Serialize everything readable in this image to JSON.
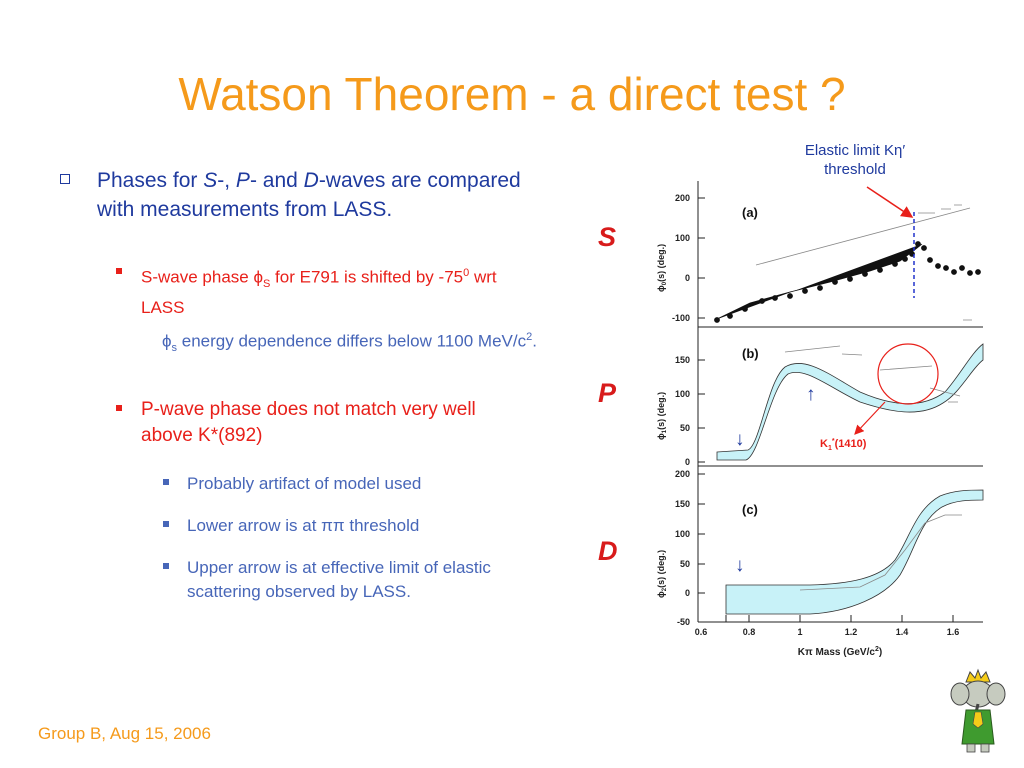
{
  "slide": {
    "title": "Watson Theorem - a direct test ?",
    "footer": "Group B, Aug 15, 2006"
  },
  "bullets": {
    "main": {
      "t1": "Phases for ",
      "s": "S",
      "t2": "-, ",
      "p": "P",
      "t3": "- and ",
      "d": "D",
      "t4": "-waves are compared with measurements from LASS."
    },
    "sub1": {
      "t1": "S-wave phase ",
      "phi": "ϕ",
      "sub": "S",
      "t2": " for E791 is shifted by -75",
      "sup": "0",
      "t3": " wrt LASS"
    },
    "note": {
      "phi": "ϕ",
      "sub": "s",
      "t1": " energy dependence differs below 1100 MeV/c",
      "sup": "2",
      "t2": "."
    },
    "sub2": "P-wave phase does not match very well above K*(892)",
    "items": [
      {
        "text": "Probably artifact of model used"
      },
      {
        "pre": "Lower arrow is at ",
        "pipi": "ππ",
        "post": " threshold"
      },
      {
        "text": "Upper arrow is at effective limit of elastic scattering observed by LASS."
      }
    ]
  },
  "figure": {
    "annotation_line1": "Elastic limit Kη′",
    "annotation_line2": "threshold",
    "wave_labels": [
      "S",
      "P",
      "D"
    ],
    "panels": [
      {
        "label": "(a)",
        "ylabel_main": "ϕ",
        "ylabel_sub": "0",
        "ylabel_rest": "(s)  (deg.)",
        "yticks": [
          "200",
          "100",
          "0",
          "-100"
        ]
      },
      {
        "label": "(b)",
        "ylabel_main": "ϕ",
        "ylabel_sub": "1",
        "ylabel_rest": "(s)  (deg.)",
        "yticks": [
          "150",
          "100",
          "50",
          "0"
        ]
      },
      {
        "label": "(c)",
        "ylabel_main": "ϕ",
        "ylabel_sub": "2",
        "ylabel_rest": "(s)  (deg.)",
        "yticks": [
          "200",
          "150",
          "100",
          "50",
          "0",
          "-50"
        ]
      }
    ],
    "xticks": [
      "0.6",
      "0.8",
      "1",
      "1.2",
      "1.4",
      "1.6"
    ],
    "xlabel_pre": "Kπ Mass (GeV/c",
    "xlabel_sup": "2",
    "xlabel_post": ")",
    "k1_label": "K",
    "k1_sub": "1",
    "k1_sup": "*",
    "k1_rest": "(1410)",
    "arrow_up": "↑",
    "arrow_down": "↓",
    "colors": {
      "title": "#f59a1b",
      "text": "#1f3a9e",
      "red": "#e8201a",
      "band": "#c8f2f8"
    }
  }
}
